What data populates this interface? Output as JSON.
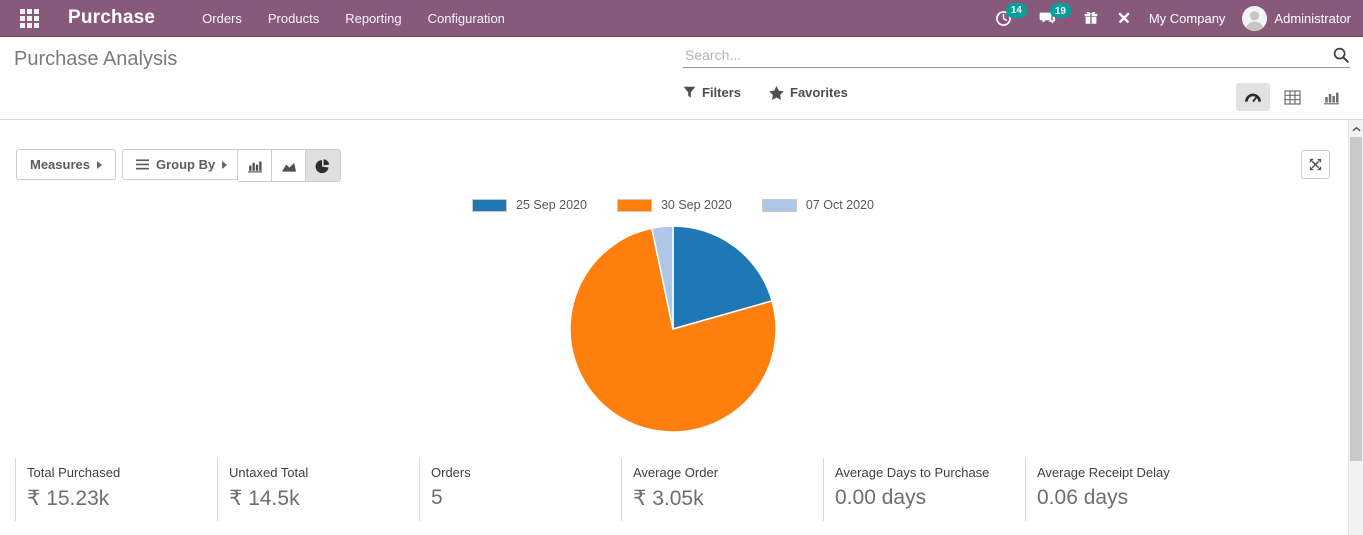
{
  "header": {
    "app_name": "Purchase",
    "menu_items": [
      "Orders",
      "Products",
      "Reporting",
      "Configuration"
    ],
    "activity_badge": "14",
    "messages_badge": "19",
    "company_label": "My Company",
    "user_label": "Administrator"
  },
  "control_panel": {
    "title": "Purchase Analysis",
    "search_placeholder": "Search...",
    "filters_label": "Filters",
    "favorites_label": "Favorites"
  },
  "toolbar": {
    "measures_label": "Measures",
    "group_by_label": "Group By"
  },
  "chart_data": {
    "type": "pie",
    "title": "",
    "categories": [
      "25 Sep 2020",
      "30 Sep 2020",
      "07 Oct 2020"
    ],
    "values": [
      20.6,
      76.1,
      3.3
    ],
    "value_unit": "percent share of total purchased",
    "colors": [
      "#1f77b4",
      "#ff7f0e",
      "#aec7e8"
    ],
    "legend_position": "top",
    "start_angle_deg": -90,
    "direction": "clockwise"
  },
  "stats": [
    {
      "label": "Total Purchased",
      "value": "₹ 15.23k"
    },
    {
      "label": "Untaxed Total",
      "value": "₹ 14.5k"
    },
    {
      "label": "Orders",
      "value": "5"
    },
    {
      "label": "Average Order",
      "value": "₹ 3.05k"
    },
    {
      "label": "Average Days to Purchase",
      "value": "0.00 days"
    },
    {
      "label": "Average Receipt Delay",
      "value": "0.06 days"
    }
  ],
  "colors": {
    "header_bg": "#875a7b",
    "badge_bg": "#00a09d"
  },
  "icons": [
    "apps-grid",
    "activity-clock",
    "messages-bubble",
    "gift",
    "developer-tools",
    "user-avatar",
    "search-magnifier",
    "filter-funnel",
    "favorites-star",
    "dashboard-gauge",
    "pivot-table",
    "bar-chart",
    "area-chart",
    "pie-chart",
    "expand-arrows",
    "scroll-up-chevron"
  ]
}
